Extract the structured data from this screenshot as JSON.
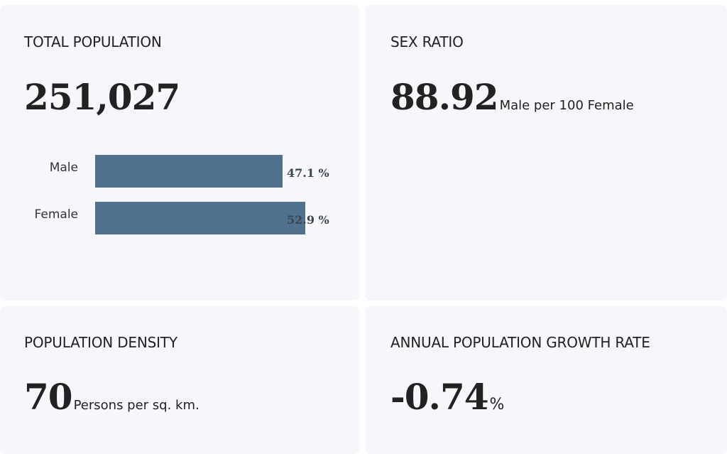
{
  "cards": {
    "total_population": {
      "title": "TOTAL POPULATION",
      "value": "251,027"
    },
    "sex_ratio": {
      "title": "SEX RATIO",
      "value": "88.92",
      "unit": "Male per 100 Female"
    },
    "population_density": {
      "title": "POPULATION DENSITY",
      "value": "70",
      "unit": "Persons per sq. km."
    },
    "growth_rate": {
      "title": "ANNUAL POPULATION GROWTH RATE",
      "value": "-0.74",
      "unit": "%"
    }
  },
  "colors": {
    "card_background": "#f6f6fb",
    "bar": "#4f718d",
    "text": "#222222"
  },
  "chart_data": {
    "type": "bar",
    "orientation": "horizontal",
    "categories": [
      "Male",
      "Female"
    ],
    "values": [
      47.1,
      52.9
    ],
    "value_labels": [
      "47.1 %",
      "52.9 %"
    ],
    "xlim": [
      0,
      52.9
    ],
    "grid": false,
    "legend": "none"
  }
}
